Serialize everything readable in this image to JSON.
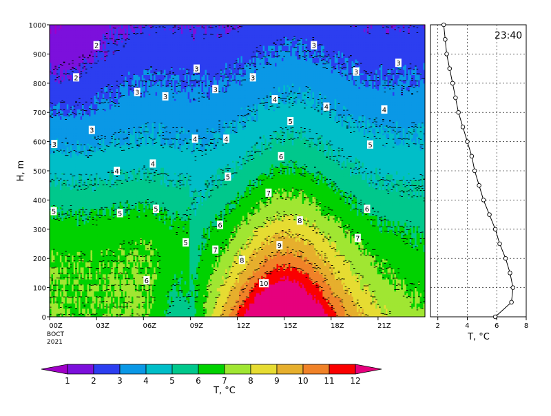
{
  "chart_data": [
    {
      "type": "heatmap",
      "title": "",
      "xlabel": "",
      "ylabel": "H, m",
      "xlim": [
        0,
        24
      ],
      "ylim": [
        0,
        1000
      ],
      "grid": false,
      "x_ticks": [
        {
          "value": 0,
          "label": "00Z"
        },
        {
          "value": 3,
          "label": "03Z"
        },
        {
          "value": 6,
          "label": "06Z"
        },
        {
          "value": 9,
          "label": "09Z"
        },
        {
          "value": 12,
          "label": "12Z"
        },
        {
          "value": 15,
          "label": "15Z"
        },
        {
          "value": 18,
          "label": "18Z"
        },
        {
          "value": 21,
          "label": "21Z"
        }
      ],
      "x_sublabels": [
        "ВОСТ",
        "2021"
      ],
      "y_ticks": [
        0,
        100,
        200,
        300,
        400,
        500,
        600,
        700,
        800,
        900,
        1000
      ],
      "contour_levels": [
        1,
        2,
        3,
        4,
        5,
        6,
        7,
        8,
        9,
        10,
        11,
        12
      ],
      "contour_labels": [
        {
          "text": "2",
          "x": 3.0,
          "y": 930
        },
        {
          "text": "2",
          "x": 1.7,
          "y": 820
        },
        {
          "text": "3",
          "x": 0.3,
          "y": 592
        },
        {
          "text": "3",
          "x": 2.7,
          "y": 640
        },
        {
          "text": "3",
          "x": 5.6,
          "y": 770
        },
        {
          "text": "3",
          "x": 7.4,
          "y": 755
        },
        {
          "text": "3",
          "x": 9.4,
          "y": 850
        },
        {
          "text": "3",
          "x": 10.6,
          "y": 780
        },
        {
          "text": "3",
          "x": 13.0,
          "y": 820
        },
        {
          "text": "3",
          "x": 16.9,
          "y": 930
        },
        {
          "text": "3",
          "x": 19.6,
          "y": 840
        },
        {
          "text": "3",
          "x": 22.3,
          "y": 870
        },
        {
          "text": "4",
          "x": 4.3,
          "y": 500
        },
        {
          "text": "4",
          "x": 6.6,
          "y": 525
        },
        {
          "text": "4",
          "x": 9.3,
          "y": 610
        },
        {
          "text": "4",
          "x": 11.3,
          "y": 610
        },
        {
          "text": "4",
          "x": 14.4,
          "y": 745
        },
        {
          "text": "4",
          "x": 17.7,
          "y": 720
        },
        {
          "text": "4",
          "x": 21.4,
          "y": 710
        },
        {
          "text": "5",
          "x": 0.1,
          "y": 362
        },
        {
          "text": "5",
          "x": 4.5,
          "y": 355
        },
        {
          "text": "5",
          "x": 6.8,
          "y": 370
        },
        {
          "text": "5",
          "x": 8.7,
          "y": 255
        },
        {
          "text": "5",
          "x": 11.4,
          "y": 480
        },
        {
          "text": "5",
          "x": 15.4,
          "y": 670
        },
        {
          "text": "5",
          "x": 20.5,
          "y": 590
        },
        {
          "text": "6",
          "x": 6.2,
          "y": 125
        },
        {
          "text": "6",
          "x": 10.9,
          "y": 315
        },
        {
          "text": "6",
          "x": 14.8,
          "y": 550
        },
        {
          "text": "6",
          "x": 20.3,
          "y": 370
        },
        {
          "text": "7",
          "x": 10.6,
          "y": 230
        },
        {
          "text": "7",
          "x": 14.0,
          "y": 425
        },
        {
          "text": "7",
          "x": 19.7,
          "y": 270
        },
        {
          "text": "8",
          "x": 12.3,
          "y": 195
        },
        {
          "text": "8",
          "x": 16.0,
          "y": 330
        },
        {
          "text": "9",
          "x": 14.7,
          "y": 245
        },
        {
          "text": "10",
          "x": 13.7,
          "y": 115
        }
      ]
    },
    {
      "type": "line",
      "title": "",
      "annotation": "23:40",
      "xlabel": "T, °C",
      "ylabel": "",
      "xlim": [
        1.5,
        8
      ],
      "ylim": [
        0,
        1000
      ],
      "grid": true,
      "x_ticks": [
        2,
        4,
        6,
        8
      ],
      "series": [
        {
          "values": [
            {
              "t": 5.9,
              "h": 0
            },
            {
              "t": 7.0,
              "h": 50
            },
            {
              "t": 7.1,
              "h": 100
            },
            {
              "t": 6.9,
              "h": 150
            },
            {
              "t": 6.6,
              "h": 200
            },
            {
              "t": 6.2,
              "h": 250
            },
            {
              "t": 5.9,
              "h": 300
            },
            {
              "t": 5.5,
              "h": 350
            },
            {
              "t": 5.1,
              "h": 400
            },
            {
              "t": 4.8,
              "h": 450
            },
            {
              "t": 4.5,
              "h": 500
            },
            {
              "t": 4.3,
              "h": 550
            },
            {
              "t": 4.0,
              "h": 600
            },
            {
              "t": 3.7,
              "h": 650
            },
            {
              "t": 3.4,
              "h": 700
            },
            {
              "t": 3.2,
              "h": 750
            },
            {
              "t": 3.0,
              "h": 800
            },
            {
              "t": 2.8,
              "h": 850
            },
            {
              "t": 2.6,
              "h": 900
            },
            {
              "t": 2.5,
              "h": 950
            },
            {
              "t": 2.4,
              "h": 1000
            }
          ]
        }
      ]
    },
    {
      "type": "colorbar",
      "title": "",
      "xlabel": "T, °C",
      "ticks": [
        "1",
        "2",
        "3",
        "4",
        "5",
        "6",
        "7",
        "8",
        "9",
        "10",
        "11",
        "12"
      ],
      "colors": [
        "#a000c8",
        "#7c10dc",
        "#2c3ef0",
        "#0a98e6",
        "#00bec8",
        "#00c88c",
        "#00d200",
        "#a0e632",
        "#e6dc32",
        "#e6af2d",
        "#f08228",
        "#fa0000",
        "#e6007d"
      ]
    }
  ]
}
